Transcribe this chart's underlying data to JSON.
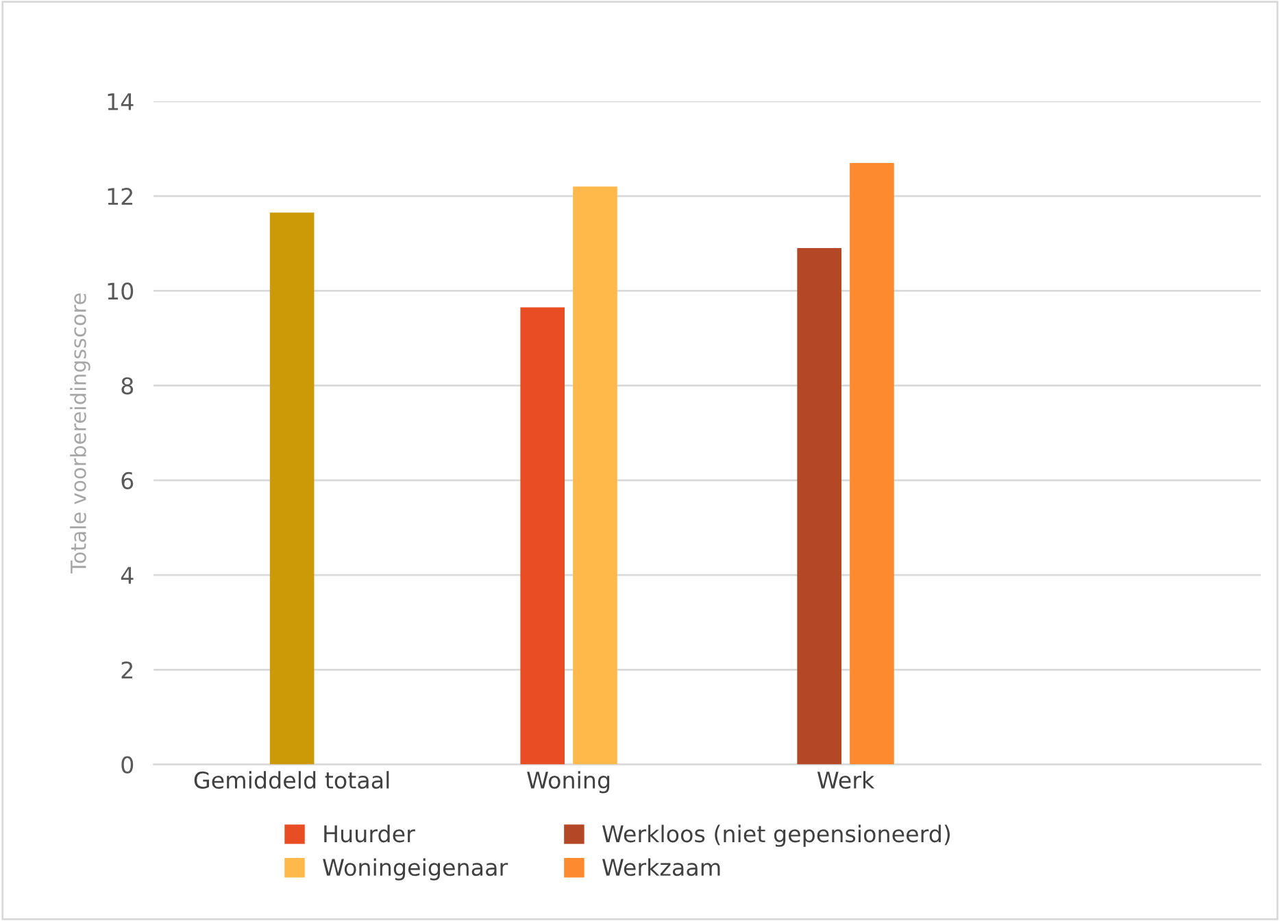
{
  "chart_data": {
    "type": "bar",
    "ylabel": "Totale voorbereidingsscore",
    "categories": [
      "Gemiddeld totaal",
      "Woning",
      "Werk",
      null
    ],
    "series": [
      {
        "color": "#cc9a06",
        "values": [
          11.65,
          null,
          null,
          null
        ]
      },
      {
        "name": "Huurder",
        "color": "#e84d23",
        "values": [
          null,
          9.65,
          null,
          null
        ]
      },
      {
        "name": "Woningeigenaar",
        "color": "#ffb94a",
        "values": [
          null,
          12.2,
          null,
          null
        ]
      },
      {
        "name": "Werkloos (niet gepensioneerd)",
        "color": "#b44826",
        "values": [
          null,
          null,
          10.9,
          null
        ]
      },
      {
        "name": "Werkzaam",
        "color": "#fd8a2f",
        "values": [
          null,
          null,
          12.7,
          null
        ]
      }
    ],
    "ylim": [
      0,
      14
    ],
    "yticks": [
      0,
      2,
      4,
      6,
      8,
      10,
      12,
      14
    ],
    "grid": "y",
    "legend": "bottom"
  }
}
